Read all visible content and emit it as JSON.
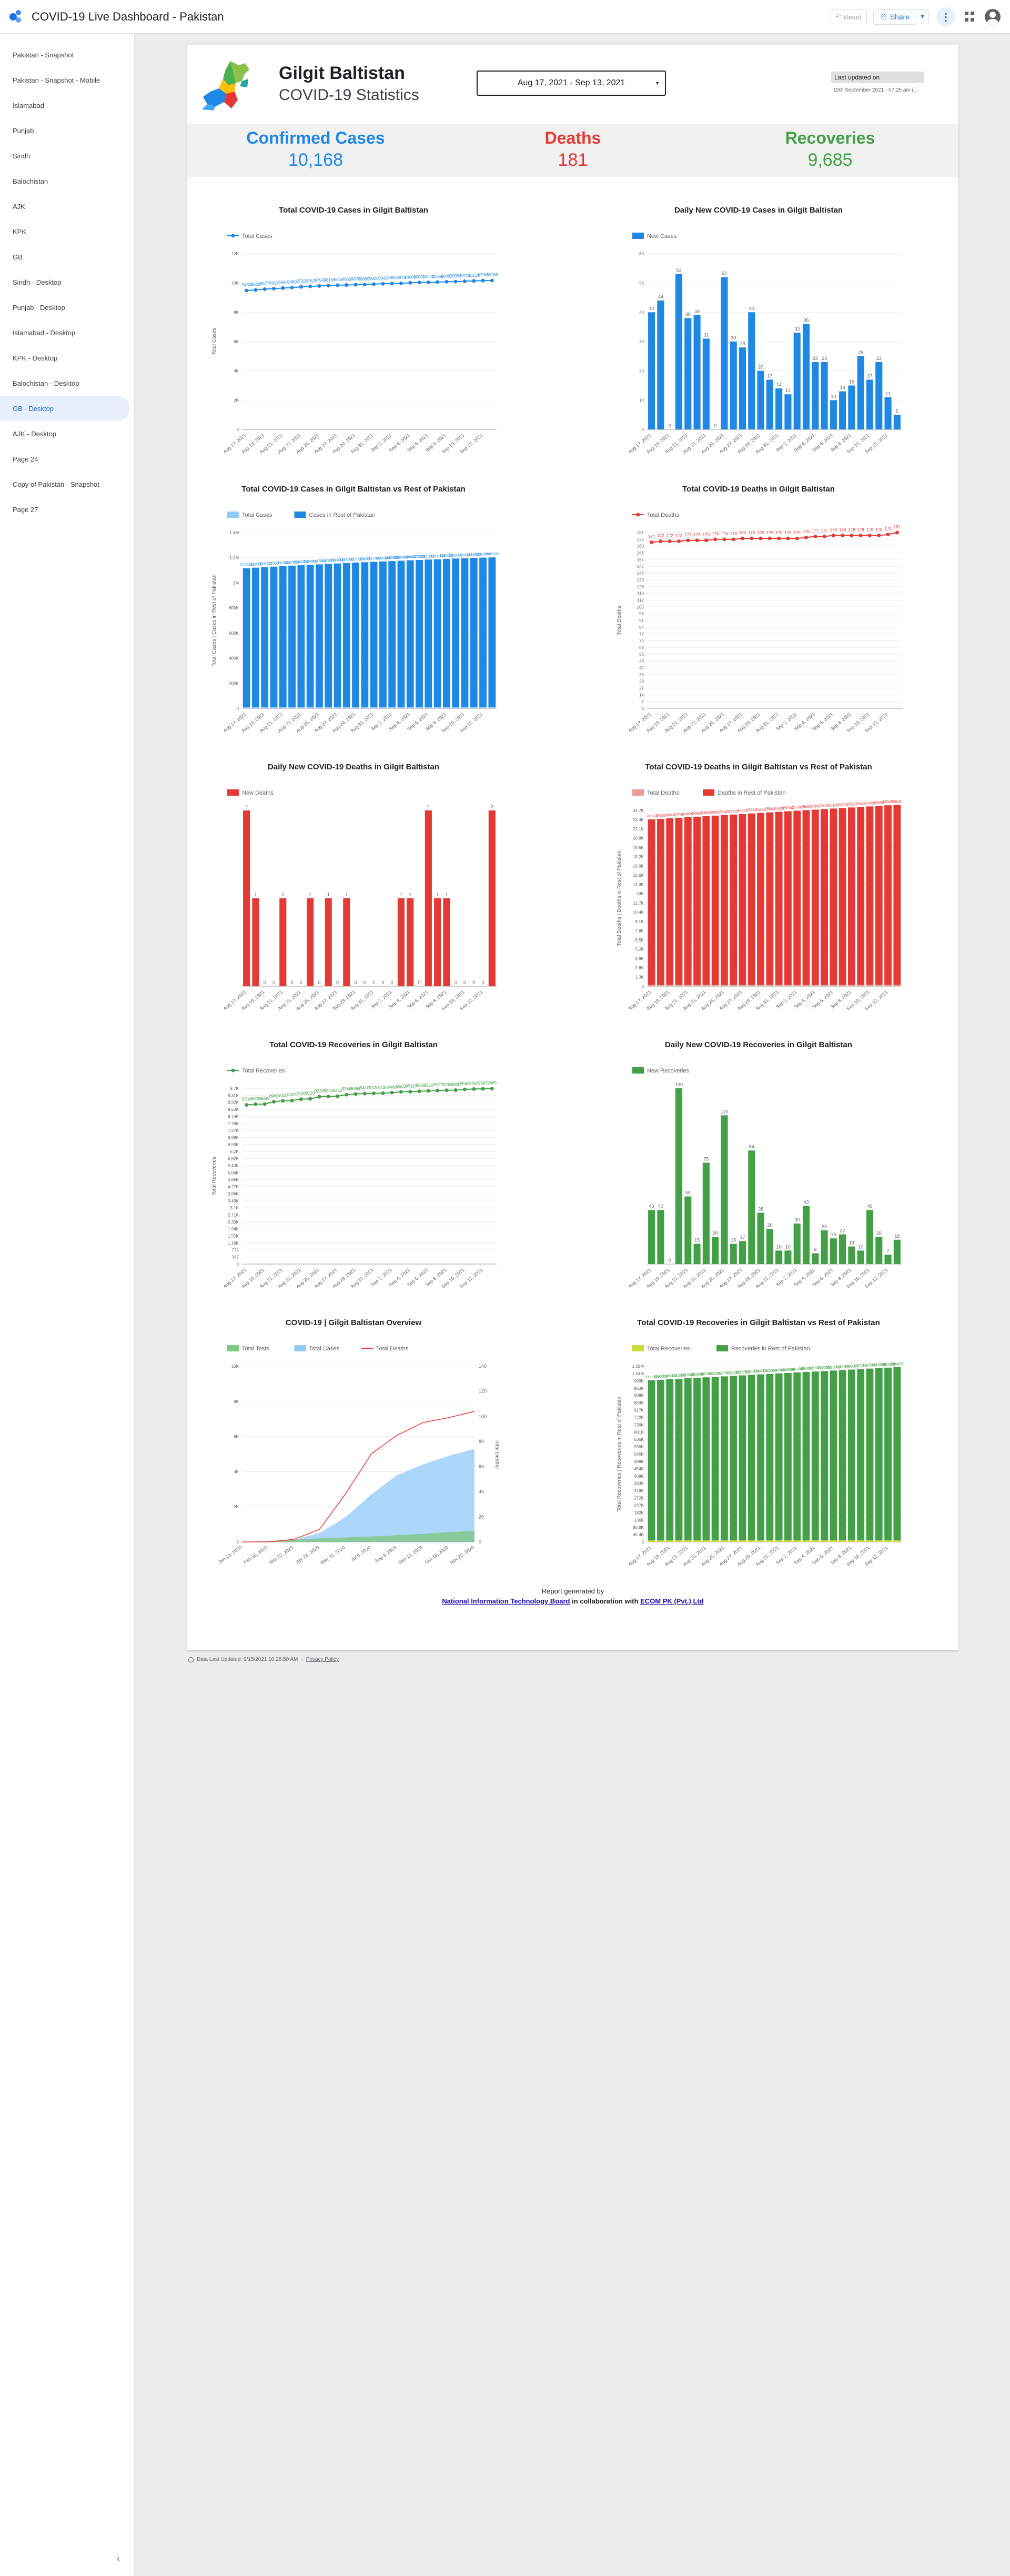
{
  "app": {
    "title": "COVID-19 Live Dashboard - Pakistan",
    "reset_label": "Reset",
    "share_label": "Share"
  },
  "sidebar": {
    "items": [
      {
        "label": "Pakistan - Snapshot"
      },
      {
        "label": "Pakistan - Snapshot - Mobile"
      },
      {
        "label": "Islamabad"
      },
      {
        "label": "Punjab"
      },
      {
        "label": "Sindh"
      },
      {
        "label": "Balochistan"
      },
      {
        "label": "AJK"
      },
      {
        "label": "KPK"
      },
      {
        "label": "GB"
      },
      {
        "label": "Sindh - Desktop"
      },
      {
        "label": "Punjab - Desktop"
      },
      {
        "label": "Islamabad - Desktop"
      },
      {
        "label": "KPK - Desktop"
      },
      {
        "label": "Balochistan - Desktop"
      },
      {
        "label": "GB - Desktop"
      },
      {
        "label": "AJK - Desktop"
      },
      {
        "label": "Page 24"
      },
      {
        "label": "Copy of Pakistan - Snapshot"
      },
      {
        "label": "Page 27"
      }
    ],
    "active_index": 14,
    "collapse_icon": "chevron-left-icon"
  },
  "header": {
    "title": "Gilgit Baltistan",
    "subtitle": "COVID-19 Statistics",
    "date_range": "Aug 17, 2021 - Sep 13, 2021",
    "updated_label": "Last updated on",
    "updated_value": "15th September 2021 - 07:25 am (..."
  },
  "kpis": [
    {
      "label": "Confirmed Cases",
      "value": "10,168",
      "color": "#1e88e5"
    },
    {
      "label": "Deaths",
      "value": "181",
      "color": "#e53935"
    },
    {
      "label": "Recoveries",
      "value": "9,685",
      "color": "#43a047"
    }
  ],
  "dates": [
    "Aug 17, 2021",
    "Aug 18, 2021",
    "Aug 19, 2021",
    "Aug 20, 2021",
    "Aug 21, 2021",
    "Aug 22, 2021",
    "Aug 23, 2021",
    "Aug 24, 2021",
    "Aug 25, 2021",
    "Aug 26, 2021",
    "Aug 27, 2021",
    "Aug 28, 2021",
    "Aug 29, 2021",
    "Aug 30, 2021",
    "Aug 31, 2021",
    "Sep 1, 2021",
    "Sep 2, 2021",
    "Sep 3, 2021",
    "Sep 4, 2021",
    "Sep 5, 2021",
    "Sep 6, 2021",
    "Sep 7, 2021",
    "Sep 8, 2021",
    "Sep 9, 2021",
    "Sep 10, 2021",
    "Sep 11, 2021",
    "Sep 12, 2021",
    "Sep 13, 2021"
  ],
  "date_ticks": [
    "Aug 17, 2021",
    "Aug 19, 2021",
    "Aug 21, 2021",
    "Aug 23, 2021",
    "Aug 25, 2021",
    "Aug 27, 2021",
    "Aug 29, 2021",
    "Aug 31, 2021",
    "Sep 2, 2021",
    "Sep 4, 2021",
    "Sep 6, 2021",
    "Sep 8, 2021",
    "Sep 10, 2021",
    "Sep 12, 2021"
  ],
  "chart_data": [
    {
      "type": "line",
      "title": "Total COVID-19 Cases in Gilgit Baltistan",
      "legend": [
        "Total Cases"
      ],
      "ylabel": "Total Cases",
      "ylim": [
        0,
        12000
      ],
      "yticks": [
        "0",
        "2K",
        "4K",
        "6K",
        "8K",
        "10K",
        "12K"
      ],
      "color": "#1e88e5",
      "series": [
        {
          "name": "Total Cases",
          "values": [
            9480,
            9520,
            9577,
            9611,
            9650,
            9680,
            9732,
            9762,
            9794,
            9816,
            9846,
            9863,
            9876,
            9889,
            9920,
            9942,
            9964,
            9976,
            10009,
            10031,
            10042,
            10058,
            10082,
            10093,
            10118,
            10138,
            10160,
            10168
          ]
        }
      ]
    },
    {
      "type": "bar",
      "title": "Daily New COVID-19 Cases in Gilgit Baltistan",
      "legend": [
        "New Cases"
      ],
      "ylim": [
        0,
        60
      ],
      "yticks": [
        "0",
        "10",
        "20",
        "30",
        "40",
        "50",
        "60"
      ],
      "color": "#1e88e5",
      "series": [
        {
          "name": "New Cases",
          "values": [
            40,
            44,
            0,
            53,
            38,
            39,
            31,
            0,
            52,
            30,
            28,
            40,
            20,
            17,
            14,
            12,
            33,
            36,
            23,
            23,
            10,
            13,
            15,
            25,
            17,
            23,
            11,
            5
          ]
        }
      ]
    },
    {
      "type": "bar",
      "title": "Total COVID-19 Cases in Gilgit Baltistan vs Rest of Pakistan",
      "legend": [
        "Total Cases",
        "Cases in Rest of Pakistan"
      ],
      "ylabel": "Total Cases | Cases in Rest of Pakistan",
      "ylim": [
        0,
        1400000
      ],
      "yticks": [
        "0",
        "200K",
        "400K",
        "600K",
        "800K",
        "1M",
        "1.2M",
        "1.4M"
      ],
      "colors": [
        "#90caf9",
        "#1e88e5"
      ],
      "series": [
        {
          "name": "Total Cases",
          "values": [
            9480,
            9520,
            9577,
            9611,
            9650,
            9680,
            9732,
            9762,
            9794,
            9816,
            9846,
            9863,
            9876,
            9889,
            9920,
            9942,
            9964,
            9976,
            10009,
            10031,
            10042,
            10058,
            10082,
            10093,
            10118,
            10138,
            10160,
            10168
          ]
        },
        {
          "name": "Cases in Rest of Pakistan",
          "values": [
            1107000,
            1111000,
            1115000,
            1119000,
            1123000,
            1127000,
            1130000,
            1134000,
            1137000,
            1141000,
            1144000,
            1148000,
            1151000,
            1154000,
            1157000,
            1160000,
            1163000,
            1166000,
            1169000,
            1172000,
            1175000,
            1177000,
            1180000,
            1183000,
            1185000,
            1188000,
            1190000,
            1192000
          ]
        }
      ]
    },
    {
      "type": "line",
      "title": "Total COVID-19 Deaths in Gilgit Baltistan",
      "legend": [
        "Total Deaths"
      ],
      "ylabel": "Total Deaths",
      "ylim": [
        0,
        181
      ],
      "yticks": [
        "0",
        "7",
        "14",
        "21",
        "28",
        "35",
        "42",
        "49",
        "56",
        "63",
        "70",
        "77",
        "84",
        "91",
        "98",
        "105",
        "112",
        "119",
        "126",
        "133",
        "140",
        "147",
        "154",
        "161",
        "168",
        "175",
        "181"
      ],
      "color": "#e53935",
      "series": [
        {
          "name": "Total Deaths",
          "values": [
            171,
            172,
            172,
            172,
            173,
            173,
            173,
            174,
            174,
            174,
            175,
            175,
            175,
            175,
            175,
            175,
            175,
            176,
            177,
            177,
            178,
            178,
            178,
            178,
            178,
            178,
            179,
            181
          ]
        }
      ]
    },
    {
      "type": "bar",
      "title": "Daily New COVID-19 Deaths in Gilgit Baltistan",
      "legend": [
        "New Deaths"
      ],
      "ylim": [
        0,
        2
      ],
      "color": "#e53935",
      "series": [
        {
          "name": "New Deaths",
          "values": [
            2,
            1,
            0,
            0,
            1,
            0,
            0,
            1,
            0,
            1,
            0,
            1,
            0,
            0,
            0,
            0,
            0,
            1,
            1,
            0,
            2,
            1,
            1,
            0,
            0,
            0,
            0,
            2
          ]
        }
      ]
    },
    {
      "type": "bar",
      "title": "Total COVID-19 Deaths in Gilgit Baltistan vs Rest of Pakistan",
      "legend": [
        "Total Deaths",
        "Deaths in Rest of Pakistan"
      ],
      "ylabel": "Total Deaths | Deaths in Rest of Pakistan",
      "ylim": [
        0,
        26000
      ],
      "yticks": [
        "0",
        "1.3K",
        "2.6K",
        "3.9K",
        "5.2K",
        "6.5K",
        "7.8K",
        "9.1K",
        "10.4K",
        "11.7K",
        "13K",
        "14.3K",
        "15.6K",
        "16.9K",
        "18.2K",
        "19.5K",
        "20.8K",
        "22.1K",
        "23.4K",
        "24.7K"
      ],
      "colors": [
        "#ef9a9a",
        "#e53935"
      ],
      "series": [
        {
          "name": "Total Deaths",
          "values": [
            171,
            172,
            172,
            172,
            173,
            173,
            173,
            174,
            174,
            174,
            175,
            175,
            175,
            175,
            175,
            175,
            175,
            176,
            177,
            177,
            178,
            178,
            178,
            178,
            178,
            178,
            179,
            181
          ]
        },
        {
          "name": "Deaths in Rest of Pakistan",
          "values": [
            24500,
            24580,
            24660,
            24740,
            24820,
            24900,
            24980,
            25060,
            25140,
            25220,
            25300,
            25380,
            25460,
            25540,
            25620,
            25700,
            25780,
            25860,
            25940,
            26020,
            26100,
            26180,
            26260,
            26340,
            26420,
            26500,
            26580,
            26640
          ]
        }
      ]
    },
    {
      "type": "line",
      "title": "Total COVID-19 Recoveries in Gilgit Baltistan",
      "legend": [
        "Total Recoveries"
      ],
      "ylabel": "Total Recoveries",
      "ylim": [
        0,
        9700
      ],
      "yticks": [
        "0",
        "387",
        "775",
        "1.16K",
        "1.55K",
        "1.94K",
        "2.33K",
        "2.71K",
        "3.1K",
        "3.49K",
        "3.88K",
        "4.27K",
        "4.65K",
        "5.04K",
        "5.43K",
        "5.82K",
        "6.2K",
        "6.59K",
        "6.98K",
        "7.37K",
        "7.76K",
        "8.14K",
        "8.53K",
        "8.92K",
        "9.31K",
        "9.7K"
      ],
      "color": "#43a047",
      "series": [
        {
          "name": "Total Recoveries",
          "values": [
            8780,
            8820,
            8830,
            8960,
            9010,
            9025,
            9100,
            9120,
            9230,
            9245,
            9262,
            9346,
            9384,
            9410,
            9420,
            9430,
            9460,
            9503,
            9511,
            9536,
            9555,
            9577,
            9590,
            9600,
            9640,
            9660,
            9667,
            9685
          ]
        }
      ]
    },
    {
      "type": "bar",
      "title": "Daily New COVID-19 Recoveries in Gilgit Baltistan",
      "legend": [
        "New Recoveries"
      ],
      "ylim": [
        0,
        130
      ],
      "color": "#43a047",
      "series": [
        {
          "name": "New Recoveries",
          "values": [
            40,
            40,
            0,
            130,
            50,
            15,
            75,
            20,
            110,
            15,
            17,
            84,
            38,
            26,
            10,
            10,
            30,
            43,
            8,
            25,
            19,
            22,
            13,
            10,
            40,
            20,
            7,
            18
          ]
        }
      ]
    },
    {
      "type": "area",
      "title": "COVID-19   |   Gilgit Baltistan Overview",
      "legend": [
        "Total Tests",
        "Total Cases",
        "Total Deaths"
      ],
      "ylabel_right": "Total Deaths",
      "ylim": [
        0,
        10000
      ],
      "yticks": [
        "0",
        "2K",
        "4K",
        "6K",
        "8K",
        "10K"
      ],
      "ylim_right": [
        0,
        140
      ],
      "yticks_right": [
        "0",
        "20",
        "40",
        "60",
        "80",
        "100",
        "120",
        "140"
      ],
      "colors": [
        "#81c784",
        "#90caf9",
        "#e53935"
      ],
      "x": [
        "Jan 12, 2020",
        "Feb 16, 2020",
        "Mar 22, 2020",
        "Apr 26, 2020",
        "May 31, 2020",
        "Jul 5, 2020",
        "Aug 9, 2020",
        "Sep 13, 2020",
        "Oct 18, 2020",
        "Nov 22, 2020"
      ],
      "series": [
        {
          "name": "Total Tests",
          "values": [
            0,
            50,
            120,
            200,
            260,
            310,
            380,
            460,
            560,
            620
          ]
        },
        {
          "name": "Total Cases",
          "values": [
            0,
            20,
            120,
            500,
            1400,
            2700,
            3800,
            4400,
            4900,
            5300
          ]
        },
        {
          "name": "Total Deaths",
          "values": [
            0,
            0,
            2,
            10,
            38,
            70,
            85,
            95,
            99,
            104
          ]
        }
      ]
    },
    {
      "type": "bar",
      "title": "Total COVID-19 Recoveries in Gilgit Baltistan vs Rest of Pakistan",
      "legend": [
        "Total Recoveries",
        "Recoveries in Rest of Pakistan"
      ],
      "ylabel": "Total Recoveries | Recoveries in Rest of Pakistan",
      "ylim": [
        0,
        1100000
      ],
      "yticks": [
        "0",
        "45.4K",
        "90.8K",
        "136K",
        "182K",
        "227K",
        "272K",
        "318K",
        "363K",
        "409K",
        "454K",
        "499K",
        "545K",
        "590K",
        "636K",
        "681K",
        "726K",
        "772K",
        "817K",
        "863K",
        "908K",
        "953K",
        "999K",
        "1.04M",
        "1.09M"
      ],
      "colors": [
        "#cddc39",
        "#43a047"
      ],
      "series": [
        {
          "name": "Total Recoveries",
          "values": [
            8780,
            8820,
            8830,
            8960,
            9010,
            9025,
            9100,
            9120,
            9230,
            9245,
            9262,
            9346,
            9384,
            9410,
            9420,
            9430,
            9460,
            9503,
            9511,
            9536,
            9555,
            9577,
            9590,
            9600,
            9640,
            9660,
            9667,
            9685
          ]
        },
        {
          "name": "Recoveries in Rest of Pakistan",
          "values": [
            1003000,
            1006000,
            1009000,
            1012000,
            1015000,
            1018000,
            1021000,
            1024000,
            1027000,
            1030000,
            1033000,
            1036000,
            1039000,
            1042000,
            1045000,
            1048000,
            1051000,
            1054000,
            1057000,
            1060000,
            1063000,
            1066000,
            1069000,
            1072000,
            1075000,
            1078000,
            1081000,
            1084000
          ]
        }
      ]
    }
  ],
  "footer": {
    "line1": "Report generated by",
    "org1": "National Information Technology Board",
    "mid": " in collaboration with ",
    "org2": "ECOM PK (Pvt.) Ltd"
  },
  "bottom": {
    "updated": "Data Last Updated: 9/15/2021 10:28:50 AM",
    "privacy": "Privacy Policy"
  }
}
